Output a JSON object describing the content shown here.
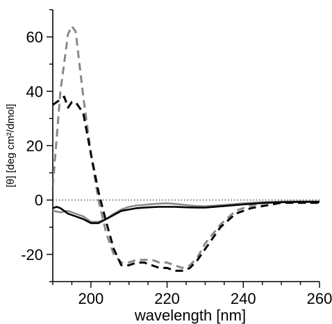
{
  "chart_data": {
    "type": "line",
    "title": "",
    "xlabel": "wavelength [nm]",
    "ylabel": "[θ] [deg cm²/dmol]",
    "xlim": [
      190,
      260
    ],
    "ylim": [
      -30,
      70
    ],
    "x_ticks": [
      200,
      220,
      240,
      260
    ],
    "x_tick_labels": [
      "200",
      "220",
      "240",
      "260"
    ],
    "y_ticks": [
      -20,
      0,
      20,
      40,
      60
    ],
    "y_tick_labels": [
      "-20",
      "0",
      "20",
      "40",
      "60"
    ],
    "minor_x_step": 5,
    "minor_y_step": 10,
    "grid": false,
    "legend": "none",
    "zero_line": {
      "y": 0,
      "style": "dotted",
      "color": "#000000"
    },
    "series": [
      {
        "color": "#888888",
        "style": "dashed",
        "x": [
          190,
          192,
          194,
          195,
          196,
          198,
          200,
          202,
          204,
          206,
          208,
          210,
          212,
          214,
          216,
          218,
          220,
          222,
          224,
          226,
          228,
          230,
          234,
          238,
          242,
          246,
          250,
          255,
          260
        ],
        "y": [
          5,
          40,
          61,
          64,
          62,
          38,
          17,
          0,
          -12,
          -20,
          -23,
          -23,
          -22,
          -22,
          -22,
          -23,
          -23,
          -24,
          -25,
          -24,
          -21,
          -16,
          -9,
          -4,
          -2,
          -1,
          -1,
          -1,
          -1
        ]
      },
      {
        "color": "#000000",
        "style": "dashed",
        "x": [
          190,
          192,
          193,
          194,
          195,
          196,
          198,
          200,
          202,
          204,
          206,
          208,
          210,
          212,
          214,
          216,
          218,
          220,
          222,
          224,
          226,
          228,
          230,
          234,
          238,
          242,
          246,
          250,
          255,
          260
        ],
        "y": [
          35,
          37,
          38,
          34,
          36,
          36,
          32,
          17,
          3,
          -8,
          -18,
          -24,
          -24,
          -23,
          -23,
          -24,
          -25,
          -25,
          -26,
          -26,
          -25,
          -22,
          -18,
          -10,
          -5,
          -3,
          -2,
          -1,
          -1,
          -1
        ]
      },
      {
        "color": "#888888",
        "style": "solid",
        "x": [
          190,
          192,
          194,
          196,
          198,
          200,
          202,
          204,
          206,
          208,
          210,
          212,
          214,
          216,
          218,
          220,
          222,
          224,
          226,
          228,
          230,
          235,
          240,
          245,
          250,
          255,
          260
        ],
        "y": [
          -4,
          -4.5,
          -4,
          -5,
          -6,
          -8,
          -8,
          -7,
          -5,
          -3.5,
          -2.5,
          -2,
          -1.8,
          -1.5,
          -1.3,
          -1.2,
          -1.4,
          -1.7,
          -2,
          -2.2,
          -2.3,
          -1.8,
          -1.2,
          -0.8,
          -0.6,
          -0.5,
          -0.5
        ]
      },
      {
        "color": "#000000",
        "style": "solid",
        "x": [
          190,
          191,
          192,
          193,
          194,
          196,
          198,
          200,
          202,
          204,
          206,
          208,
          210,
          212,
          214,
          216,
          218,
          220,
          222,
          224,
          226,
          228,
          230,
          235,
          240,
          245,
          250,
          255,
          260
        ],
        "y": [
          -3,
          -2.5,
          -3,
          -4,
          -5,
          -6,
          -7,
          -8.5,
          -8.5,
          -7,
          -5.5,
          -4,
          -3.5,
          -3,
          -2.8,
          -2.6,
          -2.5,
          -2.5,
          -2.5,
          -2.6,
          -2.7,
          -2.8,
          -2.8,
          -2.2,
          -1.6,
          -1.1,
          -0.8,
          -0.7,
          -0.7
        ]
      }
    ]
  }
}
